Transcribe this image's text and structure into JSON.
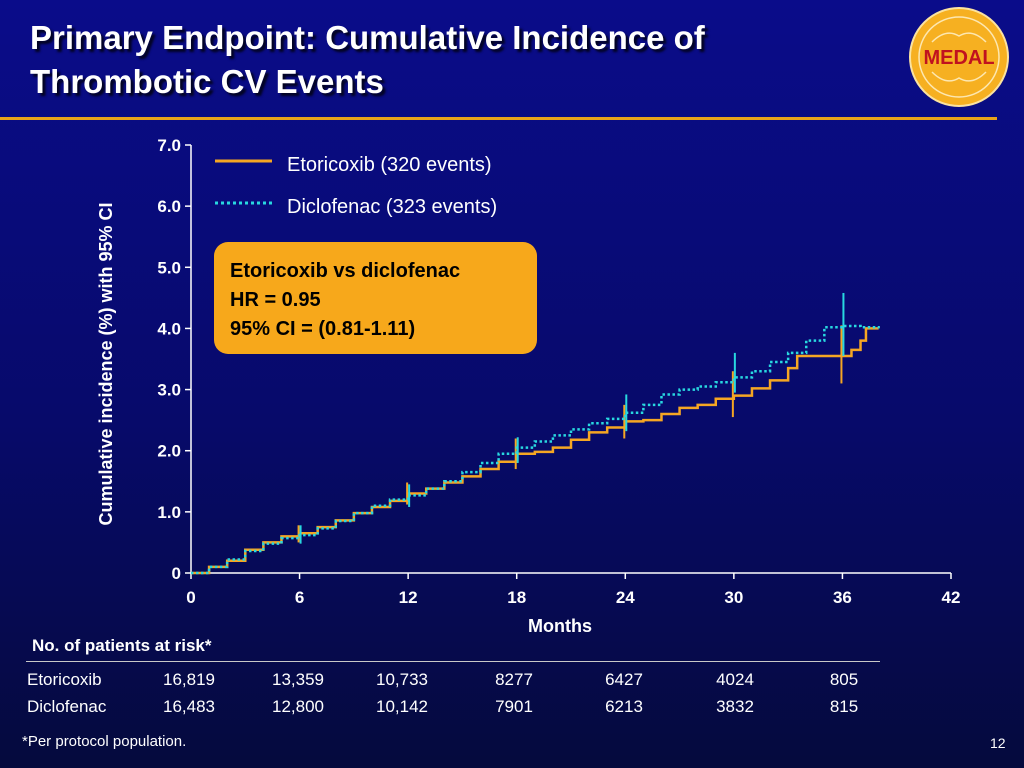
{
  "slide": {
    "title_line1": "Primary Endpoint: Cumulative Incidence of",
    "title_line2": "Thrombotic CV Events",
    "logo_text": "MEDAL",
    "slide_number": "12",
    "footnote": "*Per protocol population."
  },
  "hr_box": {
    "line1": "Etoricoxib vs diclofenac",
    "line2": "HR = 0.95",
    "line3": "95% CI = (0.81-1.11)"
  },
  "risk_table": {
    "header": "No. of patients at risk*",
    "rows": [
      {
        "label": "Etoricoxib",
        "values": [
          "16,819",
          "13,359",
          "10,733",
          "8277",
          "6427",
          "4024",
          "805"
        ]
      },
      {
        "label": "Diclofenac",
        "values": [
          "16,483",
          "12,800",
          "10,142",
          "7901",
          "6213",
          "3832",
          "815"
        ]
      }
    ]
  },
  "colors": {
    "etoricoxib": "#f5a623",
    "diclofenac": "#28d8e0",
    "hr_box": "#f7a81b",
    "rule": "#e8a41a"
  },
  "chart_data": {
    "type": "line",
    "xlabel": "Months",
    "ylabel": "Cumulative incidence (%) with 95% CI",
    "xlim": [
      0,
      42
    ],
    "ylim": [
      0,
      7
    ],
    "xticks": [
      "0",
      "6",
      "12",
      "18",
      "24",
      "30",
      "36",
      "42"
    ],
    "yticks": [
      "0",
      "1.0",
      "2.0",
      "3.0",
      "4.0",
      "5.0",
      "6.0",
      "7.0"
    ],
    "grid": false,
    "legend_position": "top-left",
    "series": [
      {
        "name": "Etoricoxib (320 events)",
        "style": "solid",
        "points": [
          [
            0,
            0
          ],
          [
            1,
            0.1
          ],
          [
            2,
            0.2
          ],
          [
            3,
            0.38
          ],
          [
            4,
            0.5
          ],
          [
            5,
            0.6
          ],
          [
            6,
            0.65
          ],
          [
            7,
            0.75
          ],
          [
            8,
            0.86
          ],
          [
            9,
            0.98
          ],
          [
            10,
            1.08
          ],
          [
            11,
            1.18
          ],
          [
            12,
            1.3
          ],
          [
            13,
            1.38
          ],
          [
            14,
            1.48
          ],
          [
            15,
            1.58
          ],
          [
            16,
            1.7
          ],
          [
            17,
            1.82
          ],
          [
            18,
            1.95
          ],
          [
            19,
            1.98
          ],
          [
            20,
            2.05
          ],
          [
            21,
            2.18
          ],
          [
            22,
            2.3
          ],
          [
            23,
            2.38
          ],
          [
            24,
            2.48
          ],
          [
            25,
            2.5
          ],
          [
            26,
            2.6
          ],
          [
            27,
            2.7
          ],
          [
            28,
            2.75
          ],
          [
            29,
            2.85
          ],
          [
            30,
            2.9
          ],
          [
            31,
            3.02
          ],
          [
            32,
            3.15
          ],
          [
            33,
            3.35
          ],
          [
            33.5,
            3.55
          ],
          [
            35,
            3.55
          ],
          [
            36,
            3.55
          ],
          [
            36.5,
            3.65
          ],
          [
            37,
            3.8
          ],
          [
            37.3,
            4.0
          ],
          [
            38,
            4.0
          ]
        ],
        "ci_marks": [
          {
            "x": 6,
            "low": 0.5,
            "high": 0.78
          },
          {
            "x": 12,
            "low": 1.12,
            "high": 1.48
          },
          {
            "x": 18,
            "low": 1.7,
            "high": 2.2
          },
          {
            "x": 24,
            "low": 2.2,
            "high": 2.75
          },
          {
            "x": 30,
            "low": 2.55,
            "high": 3.3
          },
          {
            "x": 36,
            "low": 3.1,
            "high": 4.05
          }
        ]
      },
      {
        "name": "Diclofenac (323 events)",
        "style": "dotted",
        "points": [
          [
            0,
            0
          ],
          [
            1,
            0.1
          ],
          [
            2,
            0.22
          ],
          [
            3,
            0.36
          ],
          [
            4,
            0.48
          ],
          [
            5,
            0.57
          ],
          [
            6,
            0.62
          ],
          [
            7,
            0.73
          ],
          [
            8,
            0.85
          ],
          [
            9,
            0.98
          ],
          [
            10,
            1.1
          ],
          [
            11,
            1.2
          ],
          [
            12,
            1.27
          ],
          [
            13,
            1.38
          ],
          [
            14,
            1.5
          ],
          [
            15,
            1.65
          ],
          [
            16,
            1.8
          ],
          [
            17,
            1.95
          ],
          [
            18,
            2.05
          ],
          [
            19,
            2.15
          ],
          [
            20,
            2.25
          ],
          [
            21,
            2.35
          ],
          [
            22,
            2.45
          ],
          [
            23,
            2.52
          ],
          [
            24,
            2.62
          ],
          [
            25,
            2.75
          ],
          [
            26,
            2.92
          ],
          [
            27,
            3.0
          ],
          [
            28,
            3.05
          ],
          [
            29,
            3.12
          ],
          [
            30,
            3.2
          ],
          [
            31,
            3.3
          ],
          [
            32,
            3.45
          ],
          [
            33,
            3.6
          ],
          [
            34,
            3.8
          ],
          [
            35,
            4.02
          ],
          [
            36,
            4.04
          ],
          [
            37,
            4.02
          ],
          [
            38,
            4.0
          ]
        ],
        "ci_marks": [
          {
            "x": 6,
            "low": 0.48,
            "high": 0.78
          },
          {
            "x": 12,
            "low": 1.08,
            "high": 1.45
          },
          {
            "x": 18,
            "low": 1.8,
            "high": 2.22
          },
          {
            "x": 24,
            "low": 2.32,
            "high": 2.92
          },
          {
            "x": 30,
            "low": 2.95,
            "high": 3.6
          },
          {
            "x": 36,
            "low": 3.55,
            "high": 4.58
          }
        ]
      }
    ]
  }
}
